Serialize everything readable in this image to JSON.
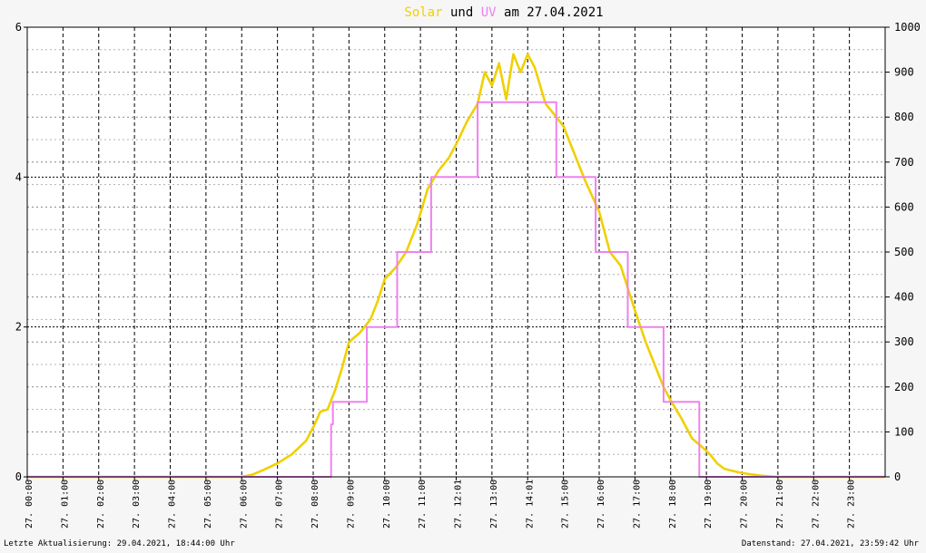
{
  "title": {
    "solar": "Solar",
    "und": "und",
    "uv": "UV",
    "rest": "am 27.04.2021"
  },
  "footer": {
    "left": "Letzte Aktualisierung: 29.04.2021, 18:44:00 Uhr",
    "right": "Datenstand: 27.04.2021, 23:59:42 Uhr"
  },
  "colors": {
    "background": "#f6f6f6",
    "plot_bg": "#ffffff",
    "solar": "#f0d000",
    "uv": "#ee82ee",
    "grid": "#000000",
    "text": "#000000"
  },
  "chart_data": {
    "type": "line",
    "x_tick_labels": [
      "27. 00:00",
      "27. 01:00",
      "27. 02:00",
      "27. 03:00",
      "27. 04:00",
      "27. 05:00",
      "27. 06:00",
      "27. 07:00",
      "27. 08:00",
      "27. 09:00",
      "27. 10:00",
      "27. 11:00",
      "27. 12:01",
      "27. 13:00",
      "27. 14:01",
      "27. 15:00",
      "27. 16:00",
      "27. 17:00",
      "27. 18:00",
      "27. 19:00",
      "27. 20:00",
      "27. 21:00",
      "27. 22:00",
      "27. 23:00"
    ],
    "x_range": [
      0,
      24
    ],
    "y_left": {
      "ticks": [
        "0",
        "2",
        "4",
        "6"
      ],
      "range": [
        0,
        6
      ]
    },
    "y_right": {
      "ticks": [
        "0",
        "100",
        "200",
        "300",
        "400",
        "500",
        "600",
        "700",
        "800",
        "900",
        "1000"
      ],
      "range": [
        0,
        1000
      ]
    },
    "grid": true,
    "series": [
      {
        "name": "Solar",
        "axis": "right",
        "x": [
          0,
          6.0,
          6.3,
          6.6,
          7.0,
          7.4,
          7.8,
          8.0,
          8.2,
          8.4,
          8.6,
          8.8,
          9.0,
          9.3,
          9.6,
          9.8,
          10.0,
          10.3,
          10.6,
          10.9,
          11.2,
          11.5,
          11.8,
          12.0,
          12.3,
          12.6,
          12.8,
          13.0,
          13.2,
          13.4,
          13.6,
          13.8,
          14.0,
          14.2,
          14.5,
          14.8,
          15.0,
          15.3,
          15.6,
          16.0,
          16.3,
          16.6,
          16.8,
          17.0,
          17.3,
          17.6,
          17.8,
          18.0,
          18.3,
          18.6,
          18.9,
          19.1,
          19.3,
          19.5,
          19.7,
          19.9,
          20.2,
          20.5,
          20.8,
          21.0,
          24
        ],
        "y": [
          0,
          0,
          5,
          15,
          30,
          50,
          80,
          110,
          145,
          150,
          190,
          240,
          300,
          320,
          350,
          390,
          440,
          465,
          500,
          560,
          640,
          680,
          710,
          740,
          790,
          830,
          900,
          870,
          920,
          840,
          940,
          900,
          940,
          910,
          830,
          800,
          780,
          720,
          660,
          590,
          500,
          470,
          420,
          370,
          300,
          240,
          200,
          170,
          130,
          85,
          65,
          50,
          30,
          18,
          14,
          10,
          6,
          3,
          1,
          0,
          0
        ]
      },
      {
        "name": "UV",
        "axis": "left",
        "x": [
          0,
          8.5,
          8.5,
          8.55,
          8.55,
          9.5,
          9.5,
          10.35,
          10.35,
          11.3,
          11.3,
          12.6,
          12.6,
          14.8,
          14.8,
          15.9,
          15.9,
          16.8,
          16.8,
          17.8,
          17.8,
          18.8,
          18.8,
          24
        ],
        "y": [
          0,
          0,
          0.7,
          0.7,
          1,
          1,
          2,
          2,
          3,
          3,
          4,
          4,
          5,
          5,
          4,
          4,
          3,
          3,
          2,
          2,
          1,
          1,
          0,
          0
        ]
      }
    ]
  }
}
